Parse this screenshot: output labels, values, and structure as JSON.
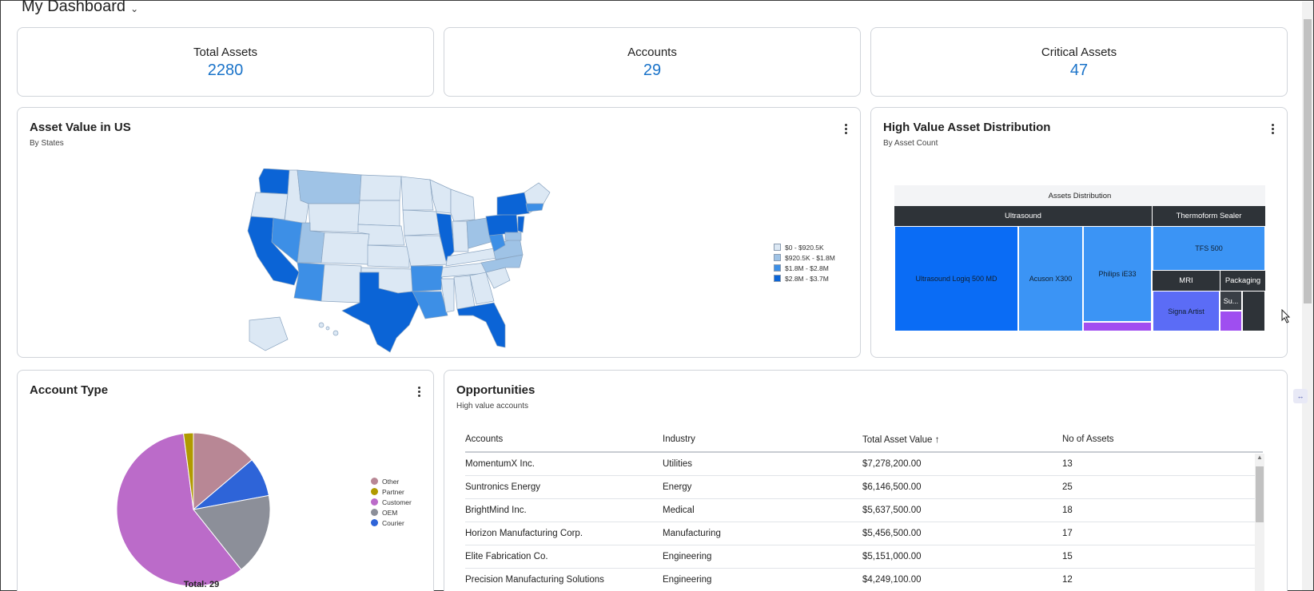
{
  "header": {
    "title": "My Dashboard"
  },
  "kpis": [
    {
      "label": "Total Assets",
      "value": "2280"
    },
    {
      "label": "Accounts",
      "value": "29"
    },
    {
      "label": "Critical Assets",
      "value": "47"
    }
  ],
  "map_card": {
    "title": "Asset Value in US",
    "subtitle": "By States",
    "legend": [
      {
        "label": "$0 - $920.5K",
        "color": "#dce8f4"
      },
      {
        "label": "$920.5K - $1.8M",
        "color": "#9fc3e6"
      },
      {
        "label": "$1.8M - $2.8M",
        "color": "#3d8fe6"
      },
      {
        "label": "$2.8M - $3.7M",
        "color": "#0b64d6"
      }
    ]
  },
  "treemap_card": {
    "title": "High Value Asset Distribution",
    "subtitle": "By Asset Count",
    "chart_title": "Assets Distribution",
    "groups": [
      "Ultrasound",
      "Thermoform Sealer",
      "MRI",
      "Packaging"
    ],
    "cells": [
      "Ultrasound Logiq 500 MD",
      "Acuson X300",
      "Philips iE33",
      "TFS 500",
      "Signa Artist",
      "Su..."
    ]
  },
  "pie_card": {
    "title": "Account Type",
    "total_label": "Total: 29",
    "chart_data": {
      "type": "pie",
      "total": 29,
      "series": [
        {
          "name": "Other",
          "value": 4,
          "color": "#b88795"
        },
        {
          "name": "Partner",
          "value": 0.6,
          "color": "#b09a00"
        },
        {
          "name": "Customer",
          "value": 17,
          "color": "#bb6bc9"
        },
        {
          "name": "OEM",
          "value": 5,
          "color": "#8c8f99"
        },
        {
          "name": "Courier",
          "value": 2.4,
          "color": "#2e64d8"
        }
      ]
    }
  },
  "opportunities": {
    "title": "Opportunities",
    "subtitle": "High value accounts",
    "columns": [
      "Accounts",
      "Industry",
      "Total Asset Value",
      "No of Assets"
    ],
    "rows": [
      [
        "MomentumX Inc.",
        "Utilities",
        "$7,278,200.00",
        "13"
      ],
      [
        "Suntronics Energy",
        "Energy",
        "$6,146,500.00",
        "25"
      ],
      [
        "BrightMind Inc.",
        "Medical",
        "$5,637,500.00",
        "18"
      ],
      [
        "Horizon Manufacturing Corp.",
        "Manufacturing",
        "$5,456,500.00",
        "17"
      ],
      [
        "Elite Fabrication Co.",
        "Engineering",
        "$5,151,000.00",
        "15"
      ],
      [
        "Precision Manufacturing Solutions",
        "Engineering",
        "$4,249,100.00",
        "12"
      ]
    ]
  }
}
